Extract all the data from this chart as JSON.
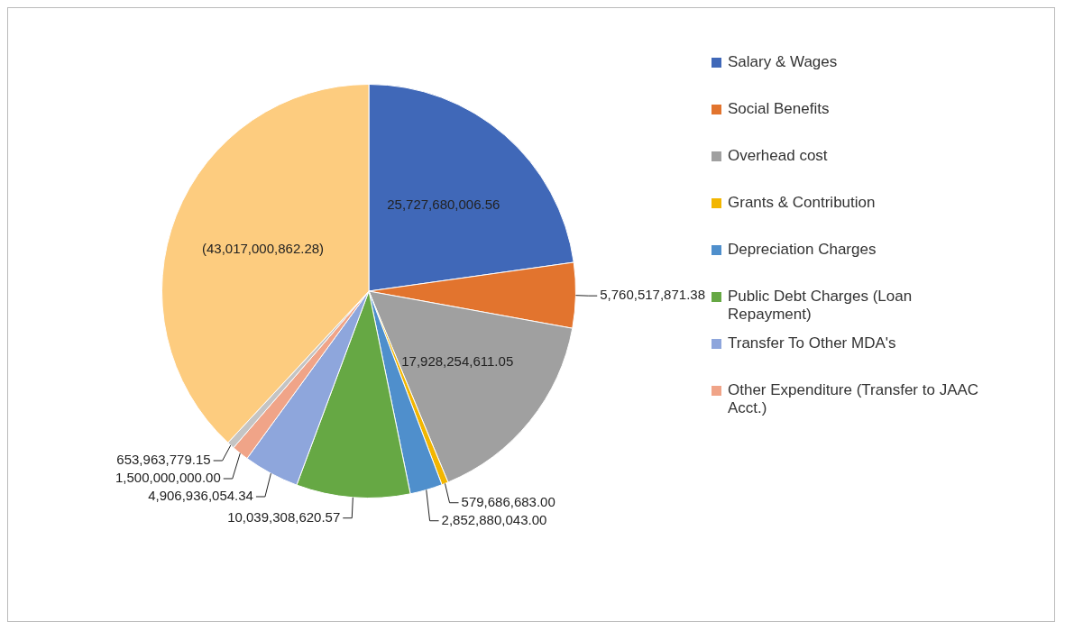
{
  "chart_data": {
    "type": "pie",
    "categories": [
      "Salary & Wages",
      "Social Benefits",
      "Overhead cost",
      "Grants & Contribution",
      "Depreciation Charges",
      "Public Debt Charges (Loan Repayment)",
      "Transfer To Other MDA's",
      "Other Expenditure (Transfer to JAAC Acct.)",
      null,
      null
    ],
    "values": [
      25727680006.56,
      5760517871.38,
      17928254611.05,
      579686683.0,
      2852880043.0,
      10039308620.57,
      4906936054.34,
      1500000000.0,
      653963779.15,
      43017000862.28
    ],
    "value_labels": [
      "25,727,680,006.56",
      "5,760,517,871.38",
      "17,928,254,611.05",
      "579,686,683.00",
      "2,852,880,043.00",
      "10,039,308,620.57",
      "4,906,936,054.34",
      "1,500,000,000.00",
      "653,963,779.15",
      "(43,017,000,862.28)"
    ],
    "colors": [
      "#4068b8",
      "#e2742e",
      "#a0a0a0",
      "#f2b600",
      "#4f8fcc",
      "#66a844",
      "#8ea6dc",
      "#f0a488",
      "#c4c4c4",
      "#fdcc7f"
    ],
    "legend": "right"
  }
}
